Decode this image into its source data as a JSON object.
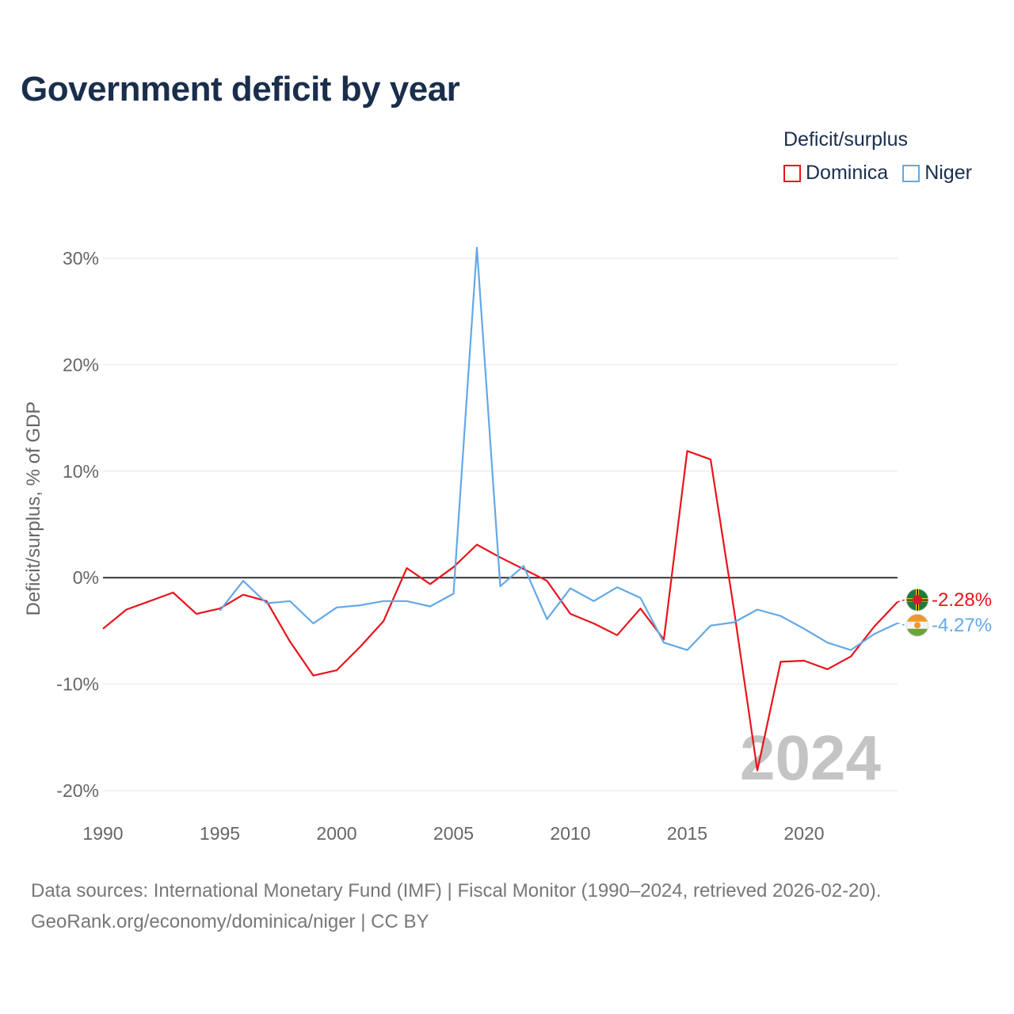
{
  "header": {
    "title": "Government deficit by year"
  },
  "legend": {
    "title": "Deficit/surplus",
    "items": [
      {
        "name": "Dominica",
        "color": "#e8141b"
      },
      {
        "name": "Niger",
        "color": "#64a8e6"
      }
    ]
  },
  "footer": {
    "source_line1": "Data sources: International Monetary Fund (IMF) | Fiscal Monitor (1990–2024, retrieved 2026-02-20).",
    "source_line2": "GeoRank.org/economy/dominica/niger | CC BY"
  },
  "chart_data": {
    "type": "line",
    "title": "Government deficit by year",
    "xlabel": "",
    "ylabel": "Deficit/surplus, % of GDP",
    "xlim": [
      1990,
      2024
    ],
    "ylim": [
      -20,
      30
    ],
    "x_ticks": [
      1990,
      1995,
      2000,
      2005,
      2010,
      2015,
      2020
    ],
    "y_ticks": [
      {
        "value": 30,
        "label": "30%"
      },
      {
        "value": 20,
        "label": "20%"
      },
      {
        "value": 10,
        "label": "10%"
      },
      {
        "value": 0,
        "label": "0%"
      },
      {
        "value": -10,
        "label": "-10%"
      },
      {
        "value": -20,
        "label": "-20%"
      }
    ],
    "year_watermark": "2024",
    "series": [
      {
        "name": "Dominica",
        "color": "#e8141b",
        "end_label": "-2.28%",
        "flag_icon": "dominica-flag-icon",
        "x": [
          1990,
          1991,
          1992,
          1993,
          1994,
          1995,
          1996,
          1997,
          1998,
          1999,
          2000,
          2001,
          2002,
          2003,
          2004,
          2005,
          2006,
          2007,
          2008,
          2009,
          2010,
          2011,
          2012,
          2013,
          2014,
          2015,
          2016,
          2017,
          2018,
          2019,
          2020,
          2021,
          2022,
          2023,
          2024
        ],
        "values": [
          -4.8,
          -3.0,
          -2.2,
          -1.4,
          -3.4,
          -2.9,
          -1.6,
          -2.2,
          -6.0,
          -9.2,
          -8.7,
          -6.5,
          -4.1,
          0.9,
          -0.6,
          1.0,
          3.1,
          1.9,
          0.8,
          -0.3,
          -3.4,
          -4.3,
          -5.4,
          -2.9,
          -5.8,
          11.9,
          11.1,
          -3.0,
          -18.1,
          -7.9,
          -7.8,
          -8.6,
          -7.4,
          -4.6,
          -2.28
        ]
      },
      {
        "name": "Niger",
        "color": "#64a8e6",
        "end_label": "-4.27%",
        "flag_icon": "niger-flag-icon",
        "x": [
          1995,
          1996,
          1997,
          1998,
          1999,
          2000,
          2001,
          2002,
          2003,
          2004,
          2005,
          2006,
          2007,
          2008,
          2009,
          2010,
          2011,
          2012,
          2013,
          2014,
          2015,
          2016,
          2017,
          2018,
          2019,
          2020,
          2021,
          2022,
          2023,
          2024
        ],
        "values": [
          -3.1,
          -0.3,
          -2.4,
          -2.2,
          -4.3,
          -2.8,
          -2.6,
          -2.2,
          -2.2,
          -2.7,
          -1.5,
          31.0,
          -0.8,
          1.1,
          -3.9,
          -1.0,
          -2.2,
          -0.9,
          -1.9,
          -6.1,
          -6.8,
          -4.5,
          -4.2,
          -3.0,
          -3.6,
          -4.8,
          -6.1,
          -6.8,
          -5.3,
          -4.27
        ]
      }
    ]
  }
}
